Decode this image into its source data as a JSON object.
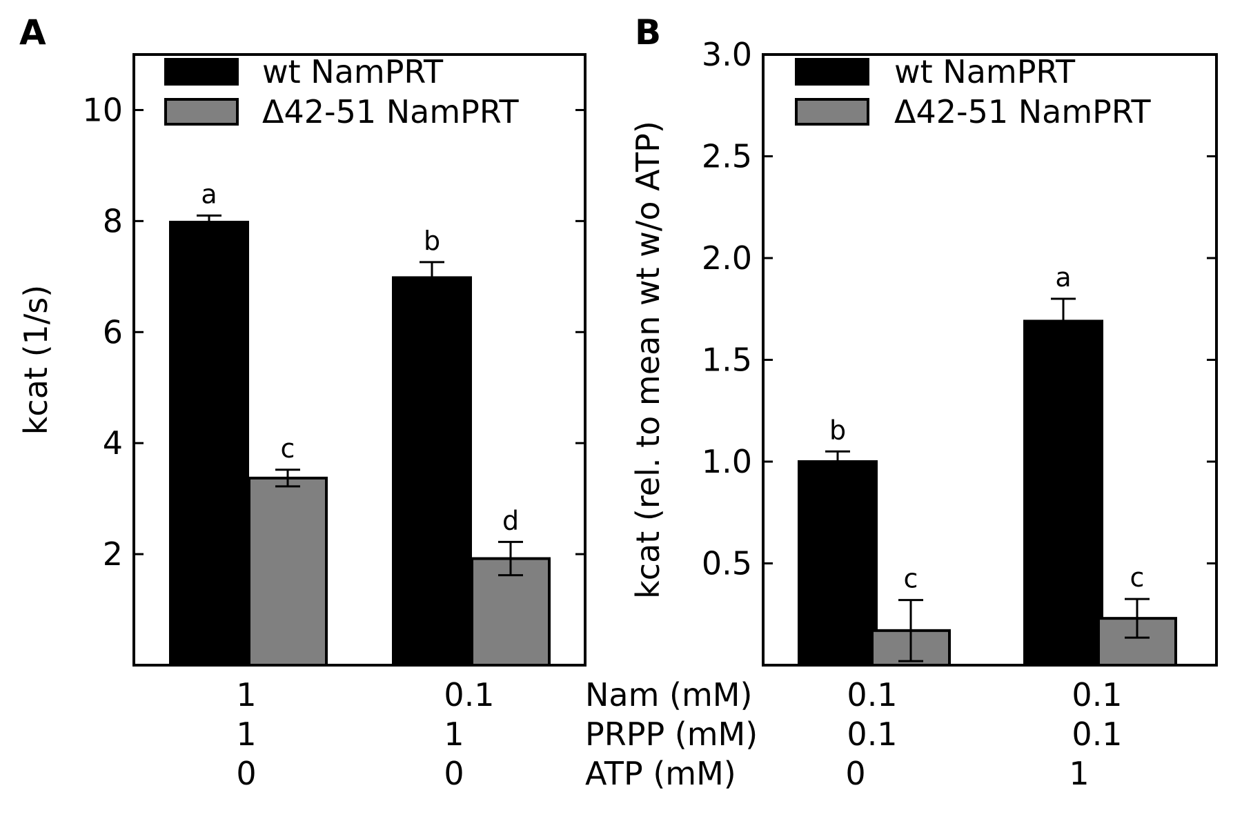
{
  "colors": {
    "wt": "#000000",
    "mutant": "#808080",
    "edge": "#000000",
    "background": "#ffffff"
  },
  "conditions": {
    "row_labels": [
      "Nam (mM)",
      "PRPP (mM)",
      "ATP (mM)"
    ],
    "panel_a": [
      [
        "1",
        "1",
        "0"
      ],
      [
        "0.1",
        "1",
        "0"
      ]
    ],
    "panel_b": [
      [
        "0.1",
        "0.1",
        "0"
      ],
      [
        "0.1",
        "0.1",
        "1"
      ]
    ]
  },
  "chart_data": [
    {
      "panel": "A",
      "type": "bar",
      "title": "",
      "xlabel": "",
      "ylabel": "kcat (1/s)",
      "ylim": [
        0,
        11
      ],
      "yticks": [
        2,
        4,
        6,
        8,
        10
      ],
      "ytick_labels": [
        "2",
        "4",
        "6",
        "8",
        "10"
      ],
      "grid": false,
      "legend_position": "top-left",
      "series": [
        {
          "name": "wt NamPRT",
          "values": [
            7.98,
            6.98
          ],
          "errors": [
            0.12,
            0.28
          ],
          "sig": [
            "a",
            "b"
          ]
        },
        {
          "name": "Δ42-51 NamPRT",
          "values": [
            3.37,
            1.92
          ],
          "errors": [
            0.15,
            0.3
          ],
          "sig": [
            "c",
            "d"
          ]
        }
      ]
    },
    {
      "panel": "B",
      "type": "bar",
      "title": "",
      "xlabel": "",
      "ylabel": "kcat (rel. to mean wt w/o ATP)",
      "ylim": [
        0,
        3.0
      ],
      "yticks": [
        0.5,
        1.0,
        1.5,
        2.0,
        2.5,
        3.0
      ],
      "ytick_labels": [
        "0.5",
        "1.0",
        "1.5",
        "2.0",
        "2.5",
        "3.0"
      ],
      "grid": false,
      "legend_position": "top-left",
      "series": [
        {
          "name": "wt NamPRT",
          "values": [
            1.0,
            1.69
          ],
          "errors": [
            0.05,
            0.11
          ],
          "sig": [
            "b",
            "a"
          ]
        },
        {
          "name": "Δ42-51 NamPRT",
          "values": [
            0.17,
            0.23
          ],
          "errors": [
            0.15,
            0.095
          ],
          "sig": [
            "c",
            "c"
          ]
        }
      ]
    }
  ]
}
